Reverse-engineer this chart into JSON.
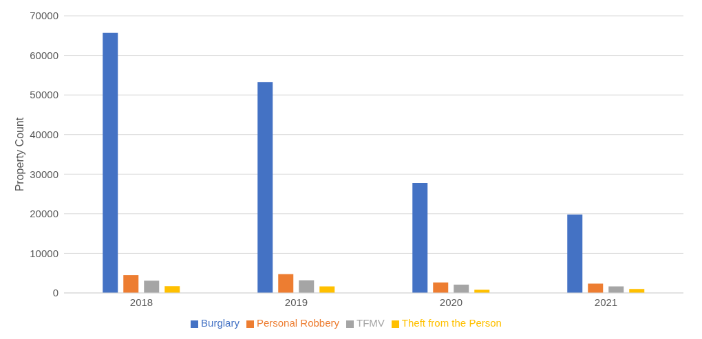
{
  "chart_data": {
    "type": "bar",
    "ylabel": "Property Count",
    "categories": [
      "2018",
      "2019",
      "2020",
      "2021"
    ],
    "series": [
      {
        "name": "Burglary",
        "color": "#4472c4",
        "values": [
          65700,
          53300,
          27800,
          19800
        ]
      },
      {
        "name": "Personal Robbery",
        "color": "#ed7d31",
        "values": [
          4500,
          4750,
          2650,
          2350
        ]
      },
      {
        "name": "TFMV",
        "color": "#a5a5a5",
        "values": [
          3100,
          3200,
          2100,
          1650
        ]
      },
      {
        "name": "Theft from the Person",
        "color": "#ffc000",
        "values": [
          1700,
          1650,
          800,
          1000
        ]
      }
    ],
    "ylim": [
      0,
      70000
    ],
    "yticks": [
      0,
      10000,
      20000,
      30000,
      40000,
      50000,
      60000,
      70000
    ],
    "grid": "y",
    "legend": "bottom"
  }
}
